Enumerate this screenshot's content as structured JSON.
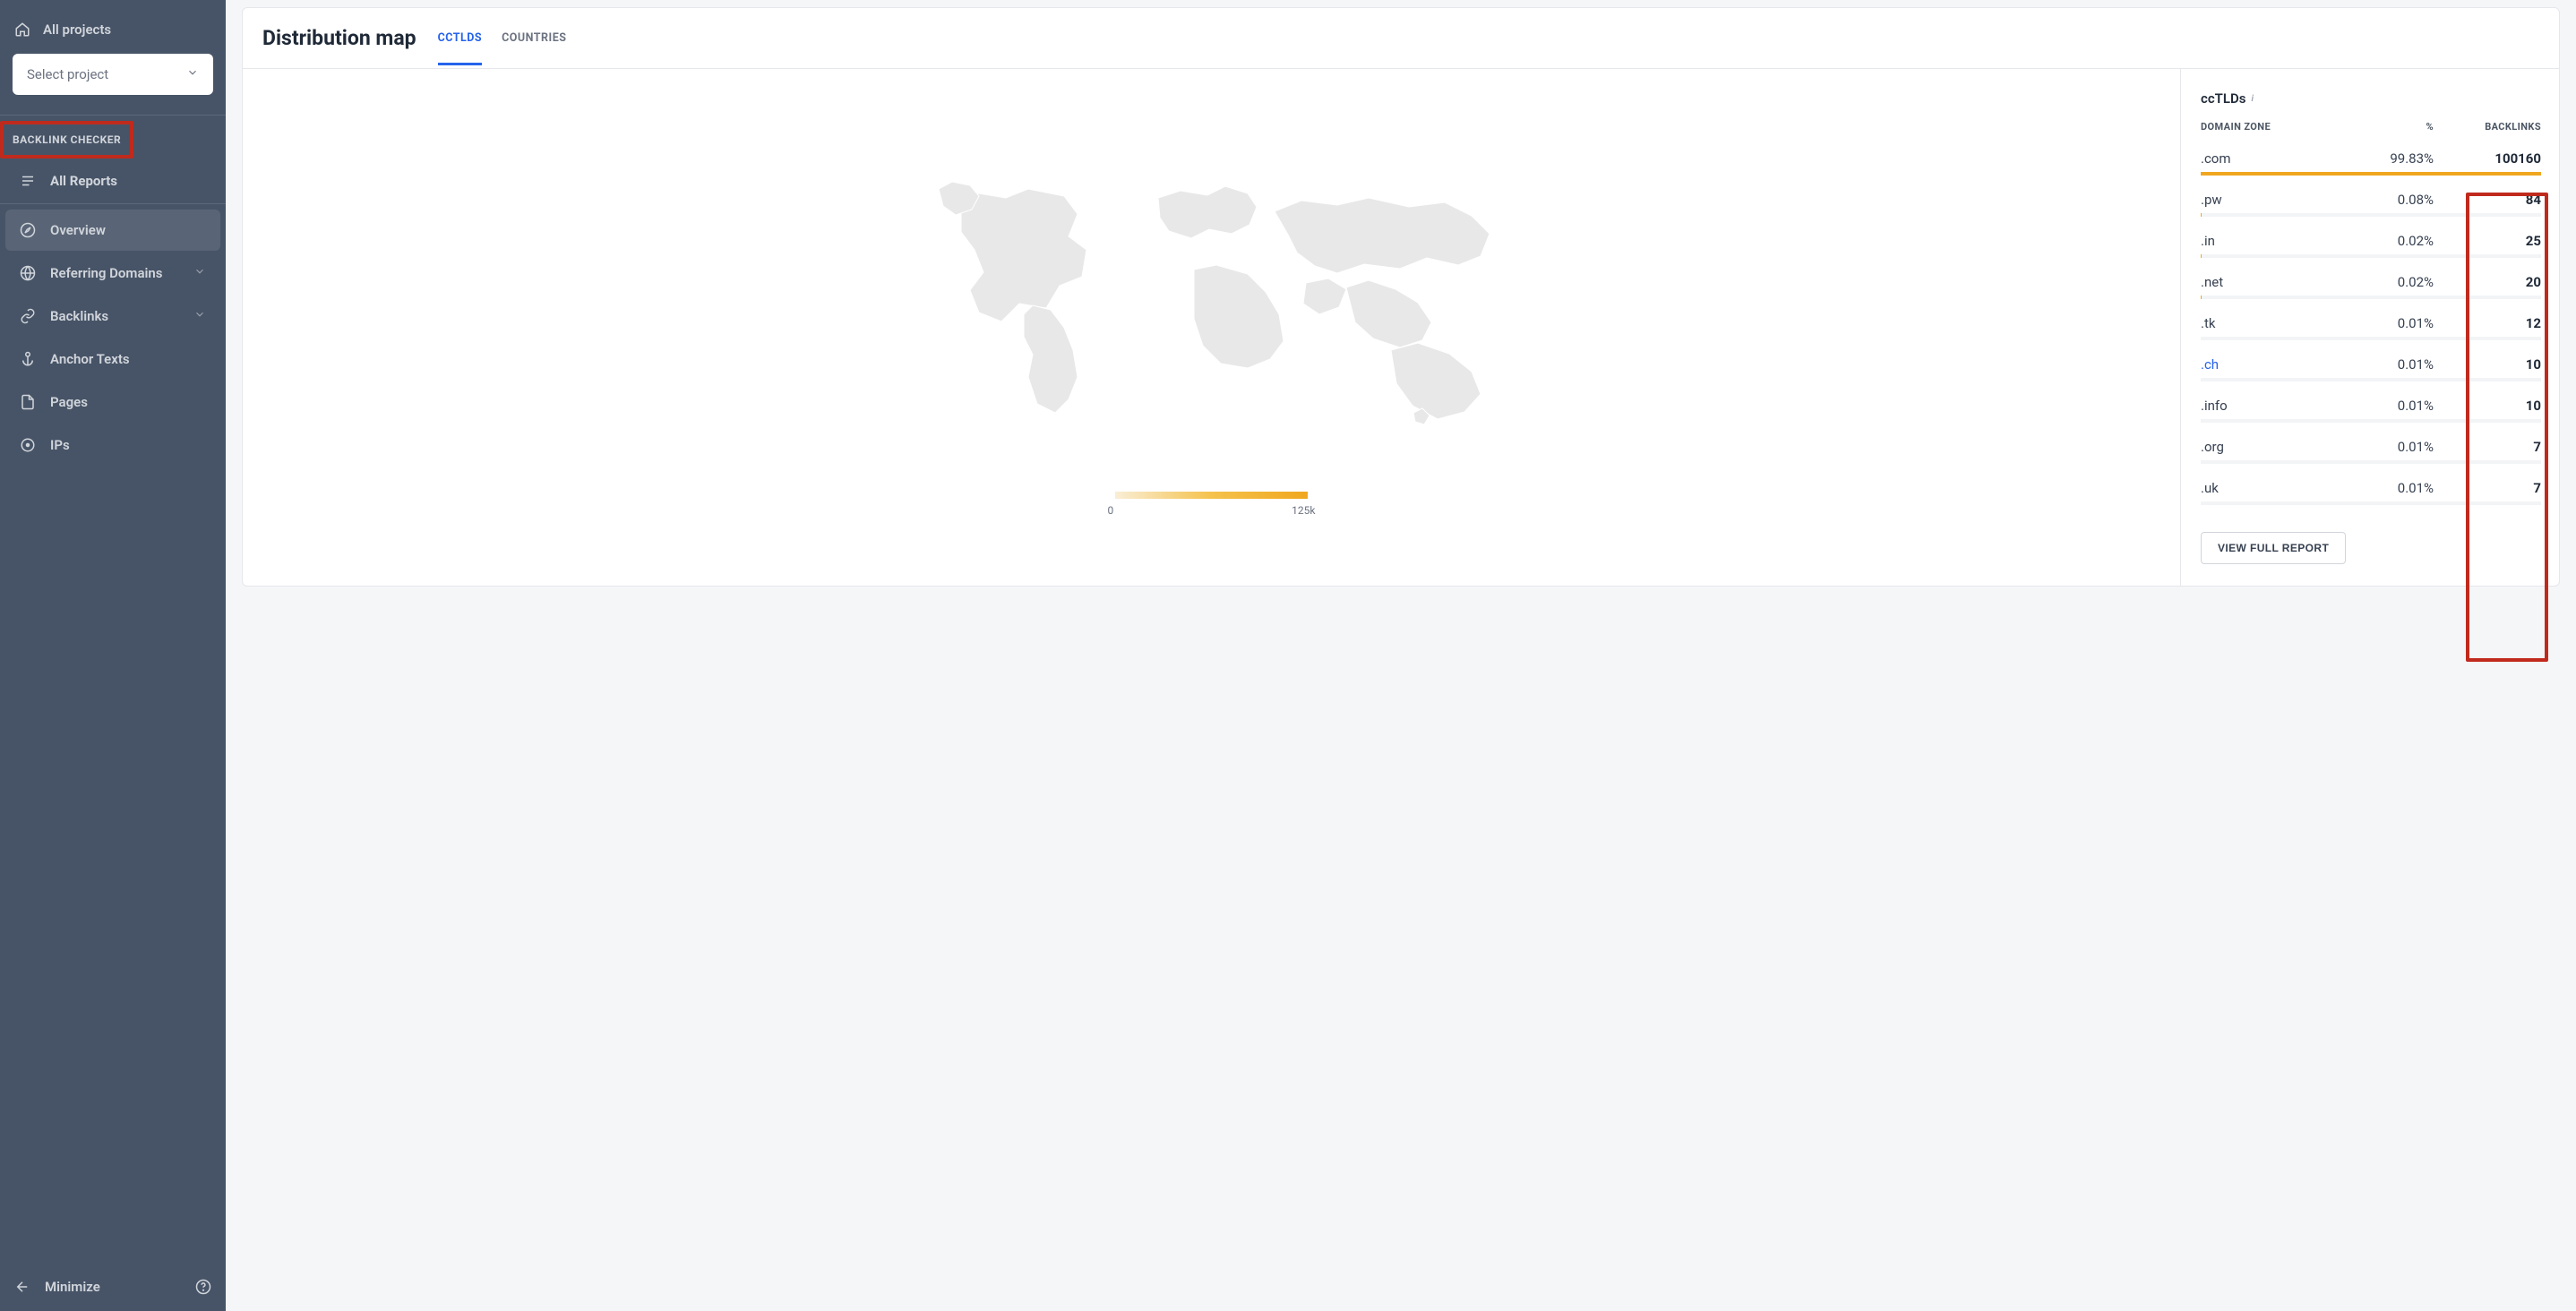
{
  "sidebar": {
    "all_projects": "All projects",
    "select_placeholder": "Select project",
    "section_label": "BACKLINK CHECKER",
    "items": [
      {
        "label": "All Reports",
        "icon": "list",
        "bold": true
      },
      {
        "label": "Overview",
        "icon": "compass",
        "active": true
      },
      {
        "label": "Referring Domains",
        "icon": "globe",
        "expandable": true
      },
      {
        "label": "Backlinks",
        "icon": "link",
        "expandable": true
      },
      {
        "label": "Anchor Texts",
        "icon": "anchor"
      },
      {
        "label": "Pages",
        "icon": "page"
      },
      {
        "label": "IPs",
        "icon": "target"
      }
    ],
    "minimize": "Minimize"
  },
  "header": {
    "title": "Distribution map",
    "tabs": [
      {
        "label": "CCTLDS",
        "active": true
      },
      {
        "label": "COUNTRIES",
        "active": false
      }
    ]
  },
  "map": {
    "legend_min": "0",
    "legend_max": "125k",
    "land_color": "#e8e8e8",
    "gradient_start": "#f9eed6",
    "gradient_end": "#f0a71f"
  },
  "panel": {
    "title": "ccTLDs",
    "columns": {
      "zone": "DOMAIN ZONE",
      "pct": "%",
      "bl": "BACKLINKS"
    },
    "rows": [
      {
        "zone": ".com",
        "pct": "99.83%",
        "bl": "100160",
        "fill": 100,
        "link": false
      },
      {
        "zone": ".pw",
        "pct": "0.08%",
        "bl": "84",
        "fill": 0.1,
        "link": false
      },
      {
        "zone": ".in",
        "pct": "0.02%",
        "bl": "25",
        "fill": 0.05,
        "link": false
      },
      {
        "zone": ".net",
        "pct": "0.02%",
        "bl": "20",
        "fill": 0.05,
        "link": false
      },
      {
        "zone": ".tk",
        "pct": "0.01%",
        "bl": "12",
        "fill": 0.02,
        "link": false
      },
      {
        "zone": ".ch",
        "pct": "0.01%",
        "bl": "10",
        "fill": 0.02,
        "link": true
      },
      {
        "zone": ".info",
        "pct": "0.01%",
        "bl": "10",
        "fill": 0.02,
        "link": false
      },
      {
        "zone": ".org",
        "pct": "0.01%",
        "bl": "7",
        "fill": 0.02,
        "link": false
      },
      {
        "zone": ".uk",
        "pct": "0.01%",
        "bl": "7",
        "fill": 0.02,
        "link": false
      }
    ],
    "button": "VIEW FULL REPORT"
  },
  "annotations": {
    "highlight_color": "#c02a1d"
  }
}
